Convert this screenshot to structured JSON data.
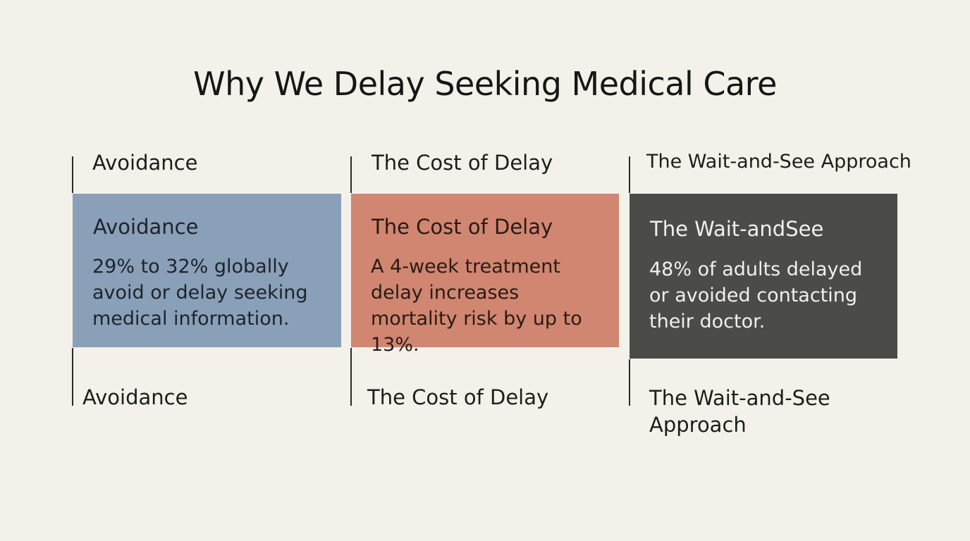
{
  "title": "Why We Delay Seeking Medical Care",
  "colors": {
    "background": "#f4f1ea",
    "card_blue": "#8aa0b9",
    "card_coral": "#d08670",
    "card_dark": "#4b4b48"
  },
  "columns": [
    {
      "top_label": "Avoidance",
      "card_title": "Avoidance",
      "card_text": "29% to 32% globally avoid or delay seeking medical information.",
      "bottom_label": "Avoidance"
    },
    {
      "top_label": "The Cost of Delay",
      "card_title": "The Cost of Delay",
      "card_text": "A 4-week treatment delay increases mortality risk by up to 13%.",
      "bottom_label": "The Cost of Delay"
    },
    {
      "top_label": "The Wait-and-See Approach",
      "card_title": "The Wait-andSee",
      "card_text": "48% of adults delayed or avoided contacting their doctor.",
      "bottom_label": "The Wait-and-See Approach"
    }
  ]
}
